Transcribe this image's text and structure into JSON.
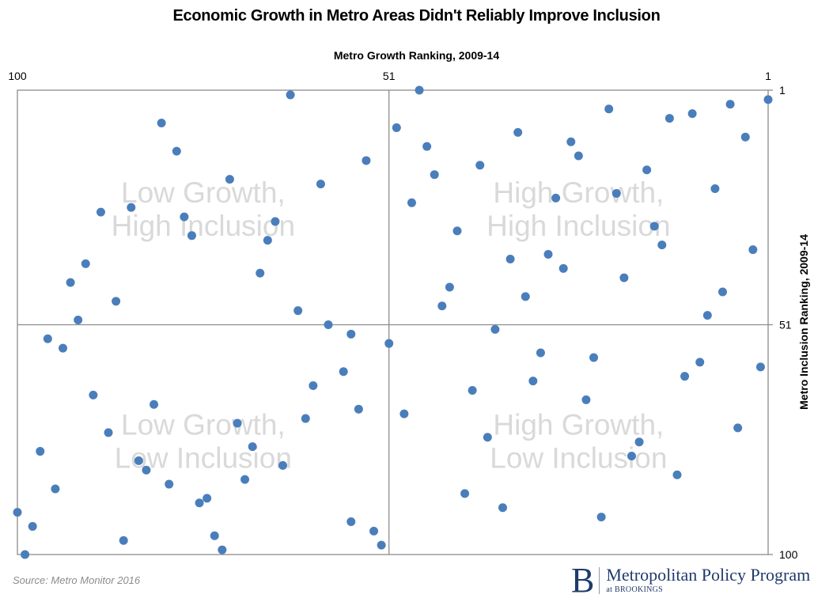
{
  "chart_data": {
    "type": "scatter",
    "title": "Economic Growth in Metro Areas Didn't Reliably Improve Inclusion",
    "xlabel": "Metro Growth Ranking, 2009-14",
    "ylabel": "Metro Inclusion Ranking, 2009-14",
    "xlim": [
      100,
      1
    ],
    "ylim": [
      1,
      100
    ],
    "x_ticks": [
      "100",
      "51",
      "1"
    ],
    "y_ticks": [
      "1",
      "51",
      "100"
    ],
    "divider": {
      "x": 51,
      "y": 51
    },
    "grid": false,
    "marker_color": "#4a7ebb",
    "quadrant_labels": [
      {
        "line1": "Low Growth,",
        "line2": "High Inclusion",
        "quadrant": "top-left"
      },
      {
        "line1": "High Growth,",
        "line2": "High Inclusion",
        "quadrant": "top-right"
      },
      {
        "line1": "Low Growth,",
        "line2": "Low Inclusion",
        "quadrant": "bottom-left"
      },
      {
        "line1": "High Growth,",
        "line2": "Low Inclusion",
        "quadrant": "bottom-right"
      }
    ],
    "points": [
      [
        64,
        2
      ],
      [
        81,
        8
      ],
      [
        79,
        14
      ],
      [
        54,
        16
      ],
      [
        72,
        20
      ],
      [
        60,
        21
      ],
      [
        85,
        26
      ],
      [
        89,
        27
      ],
      [
        78,
        28
      ],
      [
        66,
        29
      ],
      [
        77,
        32
      ],
      [
        67,
        33
      ],
      [
        91,
        38
      ],
      [
        68,
        40
      ],
      [
        93,
        42
      ],
      [
        87,
        46
      ],
      [
        63,
        48
      ],
      [
        92,
        50
      ],
      [
        59,
        51
      ],
      [
        96,
        54
      ],
      [
        56,
        53
      ],
      [
        94,
        56
      ],
      [
        51,
        55
      ],
      [
        57,
        61
      ],
      [
        61,
        64
      ],
      [
        90,
        66
      ],
      [
        55,
        69
      ],
      [
        82,
        68
      ],
      [
        62,
        71
      ],
      [
        71,
        72
      ],
      [
        88,
        74
      ],
      [
        69,
        77
      ],
      [
        97,
        78
      ],
      [
        84,
        80
      ],
      [
        83,
        82
      ],
      [
        65,
        81
      ],
      [
        70,
        84
      ],
      [
        80,
        85
      ],
      [
        95,
        86
      ],
      [
        75,
        88
      ],
      [
        76,
        89
      ],
      [
        100,
        91
      ],
      [
        56,
        93
      ],
      [
        98,
        94
      ],
      [
        53,
        95
      ],
      [
        74,
        96
      ],
      [
        86,
        97
      ],
      [
        52,
        98
      ],
      [
        73,
        99
      ],
      [
        99,
        100
      ],
      [
        47,
        1
      ],
      [
        1,
        3
      ],
      [
        6,
        4
      ],
      [
        22,
        5
      ],
      [
        11,
        6
      ],
      [
        14,
        7
      ],
      [
        50,
        9
      ],
      [
        34,
        10
      ],
      [
        4,
        11
      ],
      [
        27,
        12
      ],
      [
        46,
        13
      ],
      [
        26,
        15
      ],
      [
        39,
        17
      ],
      [
        17,
        18
      ],
      [
        45,
        19
      ],
      [
        8,
        22
      ],
      [
        21,
        23
      ],
      [
        29,
        24
      ],
      [
        48,
        25
      ],
      [
        16,
        30
      ],
      [
        42,
        31
      ],
      [
        15,
        34
      ],
      [
        3,
        35
      ],
      [
        30,
        36
      ],
      [
        35,
        37
      ],
      [
        28,
        39
      ],
      [
        20,
        41
      ],
      [
        43,
        43
      ],
      [
        7,
        44
      ],
      [
        33,
        45
      ],
      [
        44,
        47
      ],
      [
        9,
        49
      ],
      [
        37,
        52
      ],
      [
        31,
        57
      ],
      [
        24,
        58
      ],
      [
        10,
        59
      ],
      [
        2,
        60
      ],
      [
        12,
        62
      ],
      [
        32,
        63
      ],
      [
        40,
        65
      ],
      [
        25,
        67
      ],
      [
        49,
        70
      ],
      [
        5,
        73
      ],
      [
        38,
        75
      ],
      [
        18,
        76
      ],
      [
        19,
        79
      ],
      [
        13,
        83
      ],
      [
        41,
        87
      ],
      [
        36,
        90
      ],
      [
        23,
        92
      ]
    ]
  },
  "footer": {
    "source": "Source: Metro Monitor 2016",
    "logo_letter": "B",
    "logo_main": "Metropolitan Policy Program",
    "logo_sub": "at BROOKINGS"
  }
}
